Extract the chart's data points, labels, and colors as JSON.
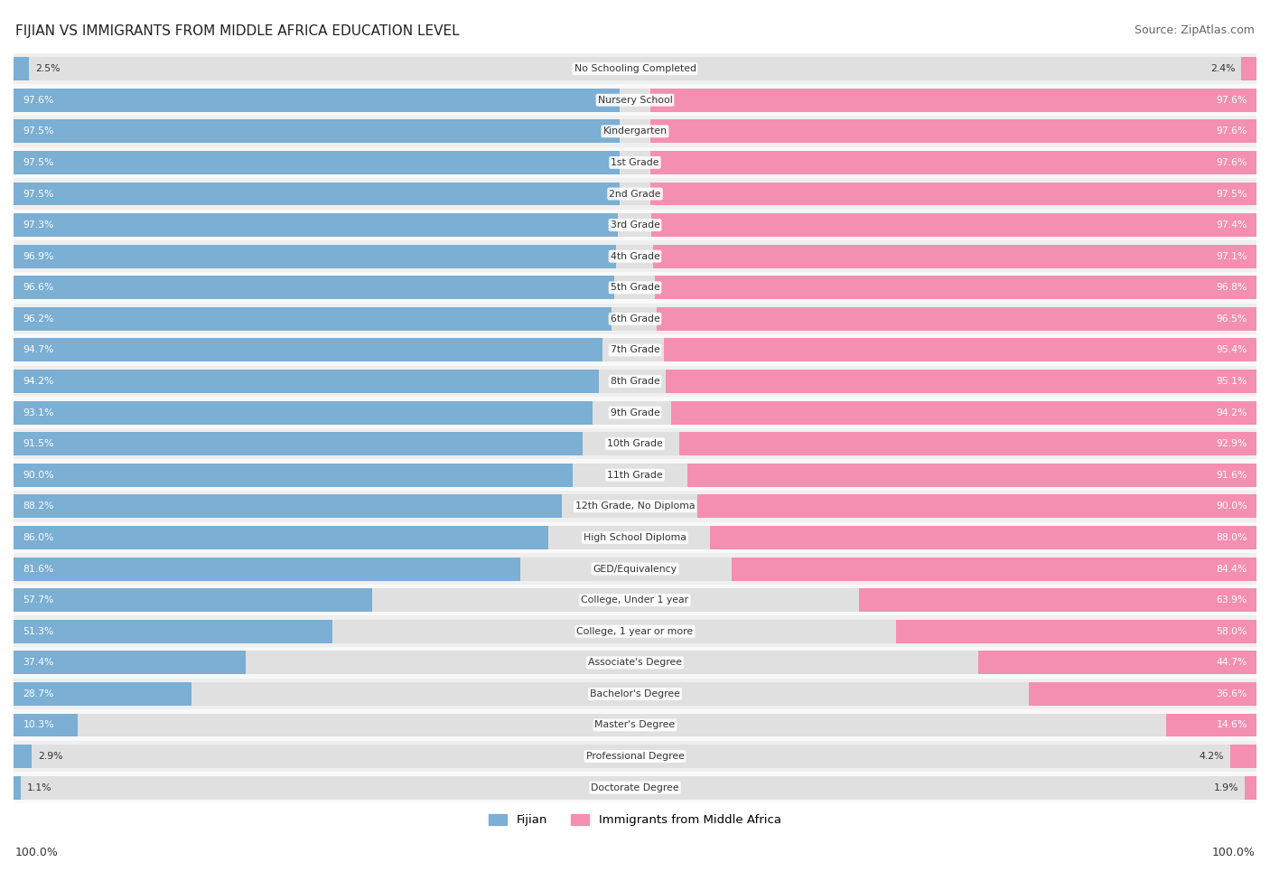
{
  "title": "FIJIAN VS IMMIGRANTS FROM MIDDLE AFRICA EDUCATION LEVEL",
  "source": "Source: ZipAtlas.com",
  "categories": [
    "No Schooling Completed",
    "Nursery School",
    "Kindergarten",
    "1st Grade",
    "2nd Grade",
    "3rd Grade",
    "4th Grade",
    "5th Grade",
    "6th Grade",
    "7th Grade",
    "8th Grade",
    "9th Grade",
    "10th Grade",
    "11th Grade",
    "12th Grade, No Diploma",
    "High School Diploma",
    "GED/Equivalency",
    "College, Under 1 year",
    "College, 1 year or more",
    "Associate's Degree",
    "Bachelor's Degree",
    "Master's Degree",
    "Professional Degree",
    "Doctorate Degree"
  ],
  "fijian": [
    2.5,
    97.6,
    97.5,
    97.5,
    97.5,
    97.3,
    96.9,
    96.6,
    96.2,
    94.7,
    94.2,
    93.1,
    91.5,
    90.0,
    88.2,
    86.0,
    81.6,
    57.7,
    51.3,
    37.4,
    28.7,
    10.3,
    2.9,
    1.1
  ],
  "immigrants": [
    2.4,
    97.6,
    97.6,
    97.6,
    97.5,
    97.4,
    97.1,
    96.8,
    96.5,
    95.4,
    95.1,
    94.2,
    92.9,
    91.6,
    90.0,
    88.0,
    84.4,
    63.9,
    58.0,
    44.7,
    36.6,
    14.6,
    4.2,
    1.9
  ],
  "fijian_color": "#7bafd4",
  "immigrant_color": "#f48fb1",
  "row_bg_even": "#efefef",
  "row_bg_odd": "#f9f9f9",
  "label_color": "#333333",
  "value_color": "#333333",
  "title_color": "#222222",
  "legend_fijian": "Fijian",
  "legend_immigrant": "Immigrants from Middle Africa"
}
